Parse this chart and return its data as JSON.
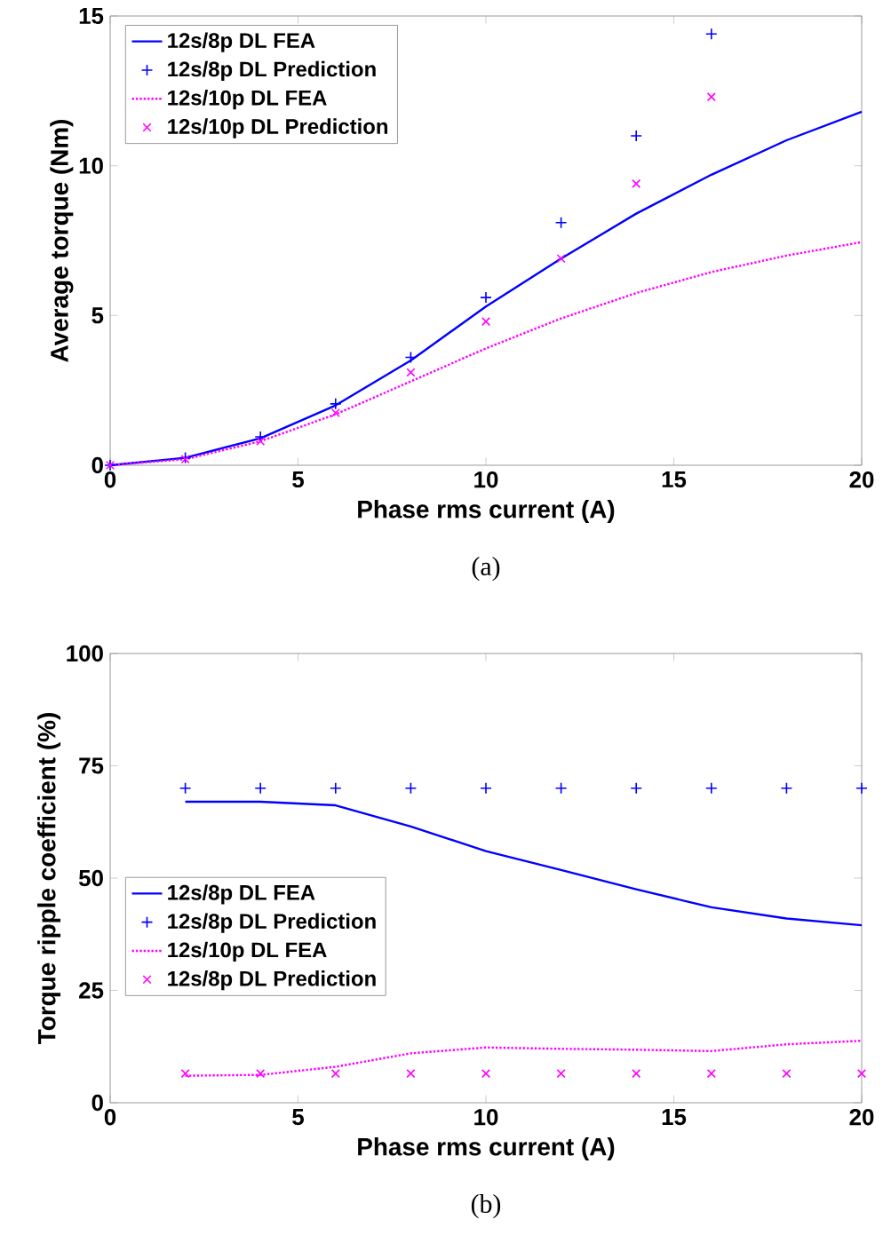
{
  "chart_data": [
    {
      "type": "line",
      "xlabel": "Phase rms current (A)",
      "ylabel": "Average torque (Nm)",
      "annotations": [
        "(a)"
      ],
      "xlim": [
        0,
        20
      ],
      "ylim": [
        0,
        15
      ],
      "xticks": [
        0,
        5,
        10,
        15,
        20
      ],
      "yticks": [
        0,
        5,
        10,
        15
      ],
      "grid": false,
      "legend": "top left",
      "series": [
        {
          "name": "12s/8p DL FEA",
          "color": "#0000ff",
          "line_style": "solid",
          "x": [
            0,
            2,
            4,
            6,
            8,
            10,
            12,
            14,
            16,
            18,
            20
          ],
          "values": [
            0,
            0.25,
            0.9,
            2.0,
            3.5,
            5.3,
            6.9,
            8.4,
            9.7,
            10.85,
            11.8
          ]
        },
        {
          "name": "12s/8p DL Prediction",
          "type": "scatter",
          "color": "#0000ff",
          "marker": "plus",
          "x": [
            0,
            2,
            4,
            6,
            8,
            10,
            12,
            14,
            16
          ],
          "values": [
            0,
            0.25,
            0.95,
            2.05,
            3.6,
            5.6,
            8.1,
            11.0,
            14.4
          ]
        },
        {
          "name": "12s/10p DL FEA",
          "color": "#ff00ff",
          "line_style": "dotted",
          "x": [
            0,
            2,
            4,
            6,
            8,
            10,
            12,
            14,
            16,
            18,
            20
          ],
          "values": [
            0,
            0.2,
            0.8,
            1.7,
            2.8,
            3.9,
            4.9,
            5.75,
            6.45,
            7.0,
            7.45
          ]
        },
        {
          "name": "12s/10p DL Prediction",
          "type": "scatter",
          "color": "#ff00ff",
          "marker": "cross",
          "x": [
            0,
            2,
            4,
            6,
            8,
            10,
            12,
            14,
            16
          ],
          "values": [
            0,
            0.2,
            0.8,
            1.75,
            3.1,
            4.8,
            6.9,
            9.4,
            12.3
          ]
        }
      ]
    },
    {
      "type": "line",
      "xlabel": "Phase rms current (A)",
      "ylabel": "Torque ripple coefficient (%)",
      "annotations": [
        "(b)"
      ],
      "xlim": [
        0,
        20
      ],
      "ylim": [
        0,
        100
      ],
      "xticks": [
        0,
        5,
        10,
        15,
        20
      ],
      "yticks": [
        0,
        25,
        50,
        75,
        100
      ],
      "grid": false,
      "legend": "left",
      "series": [
        {
          "name": "12s/8p DL FEA",
          "color": "#0000ff",
          "line_style": "solid",
          "x": [
            2,
            4,
            6,
            8,
            10,
            12,
            14,
            16,
            18,
            20
          ],
          "values": [
            67,
            67,
            66.2,
            61.5,
            56,
            51.8,
            47.5,
            43.5,
            41,
            39.5
          ]
        },
        {
          "name": "12s/8p DL Prediction",
          "type": "scatter",
          "color": "#0000ff",
          "marker": "plus",
          "x": [
            2,
            4,
            6,
            8,
            10,
            12,
            14,
            16,
            18,
            20
          ],
          "values": [
            70,
            70,
            70,
            70,
            70,
            70,
            70,
            70,
            70,
            70
          ]
        },
        {
          "name": "12s/10p DL FEA",
          "color": "#ff00ff",
          "line_style": "dotted",
          "x": [
            2,
            4,
            6,
            8,
            10,
            12,
            14,
            16,
            18,
            20
          ],
          "values": [
            6,
            6.2,
            8,
            11,
            12.3,
            12,
            11.8,
            11.5,
            13,
            13.8
          ]
        },
        {
          "name": "12s/8p DL Prediction",
          "type": "scatter",
          "color": "#ff00ff",
          "marker": "cross",
          "x": [
            2,
            4,
            6,
            8,
            10,
            12,
            14,
            16,
            18,
            20
          ],
          "values": [
            6.5,
            6.5,
            6.5,
            6.5,
            6.5,
            6.5,
            6.5,
            6.5,
            6.5,
            6.5
          ]
        }
      ]
    }
  ]
}
